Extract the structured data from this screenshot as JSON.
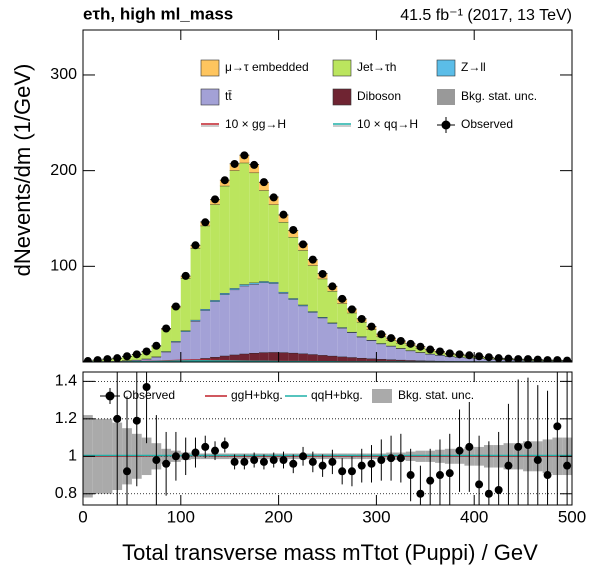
{
  "chart_data": [
    {
      "type": "stacked_histogram",
      "header": "eτh, high ml_mass",
      "lumi": "41.5 fb⁻¹ (2017, 13 TeV)",
      "ylabel": "dNevents/dm (1/GeV)",
      "bins": [
        0,
        10,
        20,
        30,
        40,
        50,
        60,
        70,
        80,
        90,
        100,
        110,
        120,
        130,
        140,
        150,
        160,
        170,
        180,
        190,
        200,
        210,
        220,
        230,
        240,
        250,
        260,
        270,
        280,
        290,
        300,
        310,
        320,
        330,
        340,
        350,
        360,
        370,
        380,
        390,
        400,
        410,
        420,
        430,
        440,
        450,
        460,
        470,
        480,
        490,
        500
      ],
      "series": [
        {
          "name": "μ→τ embedded",
          "color": "#fec55f",
          "values": [
            0,
            0,
            0,
            0.1,
            0.1,
            0.2,
            0.3,
            0.5,
            1,
            1.5,
            2,
            3,
            4,
            5,
            6,
            7,
            8,
            8.5,
            8.5,
            8,
            7.5,
            7,
            6.5,
            6,
            5.5,
            5,
            4.5,
            4,
            3.5,
            3,
            2.7,
            2.4,
            2.1,
            1.8,
            1.5,
            1.3,
            1.1,
            0.9,
            0.8,
            0.7,
            0.6,
            0.5,
            0.4,
            0.4,
            0.3,
            0.3,
            0.2,
            0.2,
            0.2,
            0.2
          ]
        },
        {
          "name": "Jet→τh",
          "color": "#bbe55e",
          "values": [
            0.7,
            1.5,
            2.2,
            2.9,
            4.3,
            5.6,
            7.3,
            10.9,
            23,
            35,
            55,
            75,
            87,
            100,
            112,
            123,
            127,
            115,
            95,
            81,
            73,
            64,
            57,
            48,
            40,
            33,
            25,
            20,
            15,
            11,
            7,
            5.7,
            5.4,
            5.1,
            4.3,
            3.2,
            2.6,
            2,
            2,
            1.8,
            1.5,
            1.2,
            0.8,
            0.7,
            0.6,
            0.9,
            0.8,
            0.5,
            0.6,
            0.3
          ]
        },
        {
          "name": "Z→ll",
          "color": "#5bbde8",
          "values": [
            0,
            0,
            0,
            0,
            0.1,
            0.1,
            0.2,
            0.3,
            0.5,
            0.8,
            1,
            1.2,
            1.4,
            1.5,
            1.6,
            1.6,
            1.6,
            1.5,
            1.4,
            1.3,
            1.2,
            1.1,
            1,
            0.9,
            0.8,
            0.7,
            0.6,
            0.5,
            0.5,
            0.4,
            0.4,
            0.3,
            0.3,
            0.3,
            0.2,
            0.2,
            0.2,
            0.2,
            0.1,
            0.1,
            0.1,
            0.1,
            0.1,
            0.1,
            0.1,
            0.1,
            0.1,
            0.1,
            0.1,
            0.1
          ]
        },
        {
          "name": "tt̄",
          "color": "#a3a1d6",
          "values": [
            0.3,
            0.5,
            0.8,
            1,
            1.5,
            2,
            3,
            5,
            10,
            20,
            30,
            40,
            50,
            58,
            64,
            68,
            71,
            72,
            73,
            72,
            62,
            56,
            50,
            44,
            39,
            34,
            30,
            26,
            22,
            19,
            16,
            14,
            12,
            10,
            8.5,
            7,
            6,
            5,
            4.3,
            3.7,
            3.2,
            2.7,
            2.3,
            2,
            1.7,
            1.4,
            1.2,
            1,
            0.9,
            0.8
          ]
        },
        {
          "name": "Diboson",
          "color": "#6f2432",
          "values": [
            0,
            0,
            0,
            0,
            0,
            0.1,
            0.2,
            0.3,
            0.6,
            1,
            1.8,
            2.8,
            4,
            5.2,
            6.5,
            7.6,
            8.6,
            9.4,
            10,
            10.2,
            10,
            9.5,
            8.8,
            8,
            7.2,
            6.4,
            5.6,
            4.9,
            4.2,
            3.6,
            3.1,
            2.6,
            2.2,
            1.8,
            1.5,
            1.3,
            1.1,
            0.9,
            0.8,
            0.7,
            0.6,
            0.5,
            0.4,
            0.35,
            0.3,
            0.25,
            0.2,
            0.2,
            0.15,
            0.1
          ]
        }
      ],
      "uncertainty": {
        "name": "Bkg. stat. unc.",
        "color": "#999999"
      },
      "signals": [
        {
          "name": "10 × gg→H",
          "color": "#c0202a",
          "values": [
            0,
            0,
            0,
            0.1,
            0.2,
            0.3,
            0.5,
            0.8,
            1.2,
            1.6,
            1.9,
            2,
            1.9,
            1.7,
            1.5,
            1.3,
            1.1,
            0.9,
            0.8,
            0.7,
            0.6,
            0.5,
            0.4,
            0.35,
            0.3,
            0.25,
            0.2,
            0.18,
            0.15,
            0.12,
            0.1,
            0.09,
            0.08,
            0.07,
            0.06,
            0.05,
            0.05,
            0.04,
            0.04,
            0.03,
            0.03,
            0.03,
            0.02,
            0.02,
            0.02,
            0.02,
            0.01,
            0.01,
            0.01,
            0.01
          ]
        },
        {
          "name": "10 × qq→H",
          "color": "#1fb0a8",
          "values": [
            0,
            0,
            0,
            0.05,
            0.1,
            0.2,
            0.3,
            0.5,
            0.7,
            0.9,
            1.1,
            1.2,
            1.2,
            1.1,
            1,
            0.9,
            0.8,
            0.7,
            0.6,
            0.5,
            0.45,
            0.4,
            0.35,
            0.3,
            0.25,
            0.2,
            0.18,
            0.15,
            0.12,
            0.1,
            0.09,
            0.08,
            0.07,
            0.06,
            0.05,
            0.05,
            0.04,
            0.04,
            0.03,
            0.03,
            0.03,
            0.02,
            0.02,
            0.02,
            0.02,
            0.01,
            0.01,
            0.01,
            0.01,
            0.01
          ]
        }
      ],
      "observed": {
        "name": "Observed",
        "color": "#000000",
        "values": [
          1,
          2,
          3,
          4,
          6,
          8,
          11,
          17,
          35,
          58,
          90,
          122,
          146,
          170,
          190,
          207,
          216,
          206,
          188,
          172,
          154,
          138,
          123,
          107,
          92,
          79,
          66,
          55,
          45,
          37,
          29,
          25,
          22,
          19,
          16,
          13,
          11,
          9,
          8,
          7,
          6,
          5,
          4,
          3.5,
          3,
          3,
          2.5,
          2,
          2,
          1.5
        ]
      },
      "xlim": [
        0,
        500
      ],
      "ylim": [
        0,
        347
      ],
      "yticks": [
        100,
        200,
        300
      ]
    },
    {
      "type": "ratio",
      "xlabel": "Total transverse mass mTtot (Puppi) / GeV",
      "xticks": [
        0,
        100,
        200,
        300,
        400,
        500
      ],
      "ylim": [
        0.74,
        1.45
      ],
      "yticks": [
        0.8,
        1,
        1.2,
        1.4
      ],
      "grid": true,
      "observed": {
        "name": "Observed",
        "color": "#000000",
        "values": [
          null,
          null,
          null,
          1.2,
          0.92,
          1.19,
          1.37,
          0.98,
          0.96,
          1.0,
          1.0,
          1.02,
          1.05,
          1.03,
          1.06,
          0.97,
          0.97,
          0.98,
          0.97,
          0.98,
          0.98,
          0.96,
          1.0,
          0.97,
          0.95,
          0.97,
          0.92,
          0.92,
          0.95,
          0.96,
          0.98,
          0.99,
          0.99,
          0.9,
          0.8,
          0.87,
          0.9,
          0.91,
          1.03,
          1.05,
          0.85,
          0.8,
          0.82,
          0.95,
          1.05,
          1.06,
          0.98,
          0.9,
          1.16,
          0.95
        ],
        "errors": [
          null,
          null,
          null,
          0.5,
          0.4,
          0.35,
          0.3,
          0.24,
          0.17,
          0.13,
          0.1,
          0.08,
          0.06,
          0.05,
          0.04,
          0.04,
          0.04,
          0.04,
          0.04,
          0.04,
          0.045,
          0.05,
          0.05,
          0.055,
          0.06,
          0.065,
          0.07,
          0.08,
          0.09,
          0.1,
          0.11,
          0.12,
          0.13,
          0.14,
          0.15,
          0.17,
          0.19,
          0.21,
          0.22,
          0.24,
          0.26,
          0.28,
          0.31,
          0.33,
          0.36,
          0.36,
          0.4,
          0.45,
          0.45,
          0.5
        ]
      },
      "lines": [
        {
          "name": "ggH+bkg.",
          "color": "#c0202a",
          "values": [
            1,
            1,
            1,
            1,
            1,
            1,
            1.001,
            1.002,
            1.003,
            1.003,
            1.003,
            1.002,
            1.002,
            1.001,
            1.001,
            1,
            1,
            1,
            1,
            1,
            1,
            1,
            1,
            1,
            1,
            1,
            1,
            1,
            1,
            1,
            1,
            1,
            1,
            1,
            1,
            1,
            1,
            1,
            1,
            1,
            1,
            1,
            1,
            1,
            1,
            1,
            1,
            1,
            1,
            1
          ]
        },
        {
          "name": "qqH+bkg.",
          "color": "#1fb0a8",
          "values": [
            1.004,
            1.004,
            1.004,
            1.004,
            1.004,
            1.004,
            1.004,
            1.004,
            1.004,
            1.004,
            1.004,
            1.004,
            1.004,
            1.004,
            1.004,
            1.004,
            1.004,
            1.004,
            1.004,
            1.004,
            1.004,
            1.004,
            1.004,
            1.004,
            1.004,
            1.004,
            1.004,
            1.004,
            1.004,
            1.004,
            1.004,
            1.004,
            1.004,
            1.004,
            1.004,
            1.004,
            1.004,
            1.004,
            1.004,
            1.004,
            1.004,
            1.004,
            1.004,
            1.004,
            1.004,
            1.004,
            1.004,
            1.004,
            1.004,
            1.004
          ]
        }
      ],
      "band": {
        "name": "Bkg. stat. unc.",
        "color": "#aaaaaa",
        "values": [
          1,
          1,
          1,
          1,
          1,
          1,
          1,
          1,
          1,
          1,
          1,
          1,
          1,
          1,
          1,
          1,
          1,
          1,
          1,
          1,
          1,
          1,
          1,
          1,
          1,
          1,
          1,
          1,
          1,
          1,
          1,
          1,
          1,
          1,
          1,
          1,
          1,
          1,
          1,
          1,
          1,
          1,
          1,
          1,
          1,
          1,
          1,
          1,
          1,
          1
        ],
        "errors": [
          0.22,
          0.2,
          0.2,
          0.18,
          0.15,
          0.12,
          0.1,
          0.07,
          0.04,
          0.03,
          0.02,
          0.015,
          0.015,
          0.015,
          0.015,
          0.015,
          0.015,
          0.015,
          0.015,
          0.015,
          0.015,
          0.015,
          0.015,
          0.015,
          0.015,
          0.015,
          0.015,
          0.015,
          0.015,
          0.015,
          0.015,
          0.02,
          0.02,
          0.025,
          0.03,
          0.03,
          0.035,
          0.04,
          0.04,
          0.05,
          0.05,
          0.06,
          0.06,
          0.07,
          0.07,
          0.08,
          0.08,
          0.09,
          0.1,
          0.1
        ]
      }
    }
  ]
}
